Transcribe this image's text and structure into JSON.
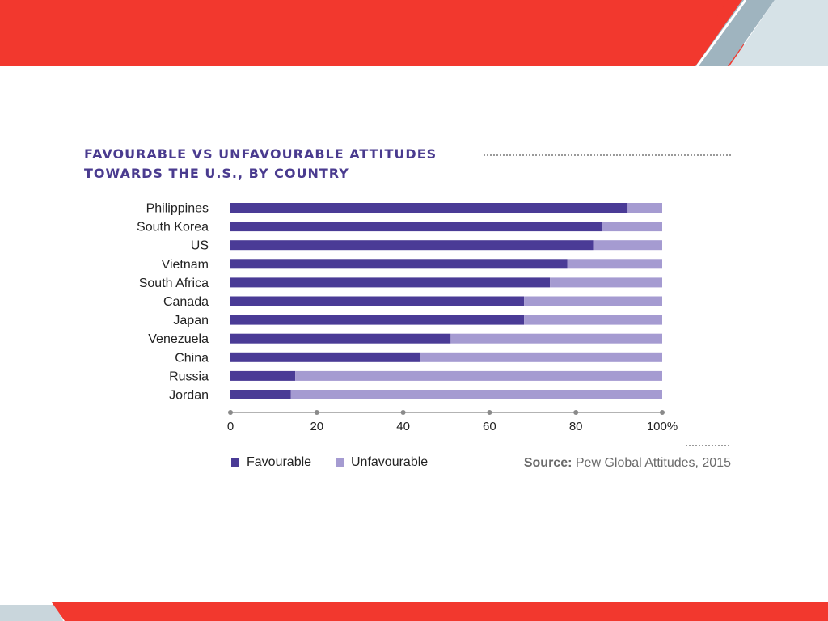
{
  "slide": {
    "title_line_1": "FAVOURABLE VS UNFAVOURABLE ATTITUDES",
    "title_line_2": "TOWARDS THE U.S., BY COUNTRY",
    "source_label": "Source:",
    "source_text": "Pew Global Attitudes, 2015"
  },
  "colors": {
    "banner_red": "#f2382e",
    "banner_grey": "#c9d6dc",
    "title": "#4a3b8f",
    "favourable": "#4a3b96",
    "unfavourable": "#a59bd1"
  },
  "legend": {
    "favourable": "Favourable",
    "unfavourable": "Unfavourable"
  },
  "chart_data": {
    "type": "bar",
    "orientation": "horizontal",
    "stacked": true,
    "title": "FAVOURABLE VS UNFAVOURABLE ATTITUDES TOWARDS THE U.S., BY COUNTRY",
    "categories": [
      "Philippines",
      "South Korea",
      "US",
      "Vietnam",
      "South Africa",
      "Canada",
      "Japan",
      "Venezuela",
      "China",
      "Russia",
      "Jordan"
    ],
    "series": [
      {
        "name": "Favourable",
        "values": [
          92,
          86,
          84,
          78,
          74,
          68,
          68,
          51,
          44,
          15,
          14
        ]
      },
      {
        "name": "Unfavourable",
        "values": [
          8,
          14,
          16,
          22,
          26,
          32,
          32,
          49,
          56,
          85,
          86
        ]
      }
    ],
    "xticks": [
      "0",
      "20",
      "40",
      "60",
      "80",
      "100%"
    ],
    "xlim": [
      0,
      100
    ],
    "legend_position": "bottom-left",
    "grid": false
  }
}
